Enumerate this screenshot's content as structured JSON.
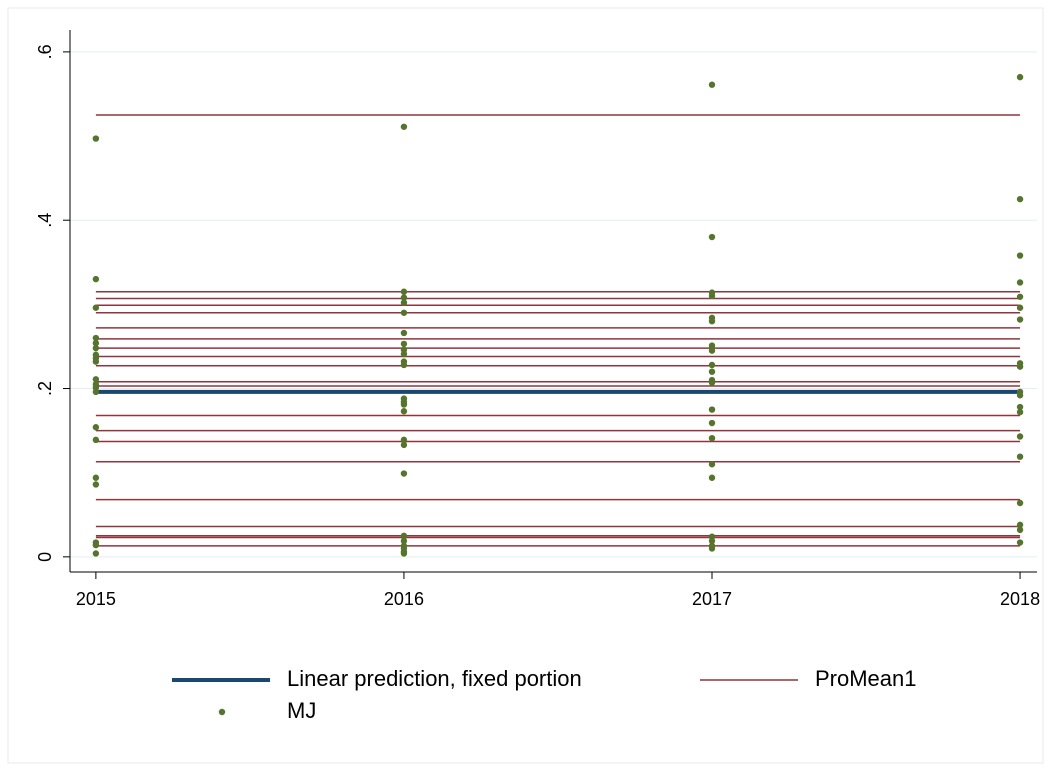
{
  "chart_data": {
    "type": "scatter",
    "xlim": [
      2014.916,
      2018.055
    ],
    "xticks": [
      2015,
      2016,
      2017,
      2018
    ],
    "ylim": [
      -0.018,
      0.626
    ],
    "yticks": [
      0,
      {
        "value": 0.2,
        "label": ".2"
      },
      {
        "value": 0.4,
        "label": ".4"
      },
      {
        "value": 0.6,
        "label": ".6"
      }
    ],
    "grid": true,
    "legend": "bottom",
    "series": [
      {
        "name": "Linear prediction, fixed portion",
        "type": "line",
        "color": "#1a476f",
        "x": [
          2015,
          2016,
          2017,
          2018
        ],
        "values": [
          0.196,
          0.196,
          0.196,
          0.196
        ]
      },
      {
        "name": "ProMean1",
        "type": "hlines",
        "color": "#90353b",
        "x": [
          2015,
          2018
        ],
        "levels": [
          0.525,
          0.315,
          0.307,
          0.299,
          0.29,
          0.272,
          0.259,
          0.248,
          0.238,
          0.227,
          0.208,
          0.203,
          0.168,
          0.15,
          0.137,
          0.113,
          0.068,
          0.036,
          0.025,
          0.023,
          0.013
        ]
      },
      {
        "name": "MJ",
        "type": "scatter",
        "color": "#55752f",
        "x": [
          2015,
          2015,
          2015,
          2015,
          2015,
          2015,
          2015,
          2015,
          2015,
          2015,
          2015,
          2015,
          2015,
          2015,
          2015,
          2015,
          2015,
          2015,
          2015,
          2015,
          2016,
          2016,
          2016,
          2016,
          2016,
          2016,
          2016,
          2016,
          2016,
          2016,
          2016,
          2016,
          2016,
          2016,
          2016,
          2016,
          2016,
          2016,
          2016,
          2016,
          2016,
          2016,
          2016,
          2016,
          2017,
          2017,
          2017,
          2017,
          2017,
          2017,
          2017,
          2017,
          2017,
          2017,
          2017,
          2017,
          2017,
          2017,
          2017,
          2017,
          2017,
          2017,
          2017,
          2017,
          2017,
          2018,
          2018,
          2018,
          2018,
          2018,
          2018,
          2018,
          2018,
          2018,
          2018,
          2018,
          2018,
          2018,
          2018,
          2018,
          2018,
          2018,
          2018,
          2018
        ],
        "values": [
          0.497,
          0.33,
          0.296,
          0.26,
          0.254,
          0.248,
          0.24,
          0.236,
          0.232,
          0.211,
          0.205,
          0.201,
          0.196,
          0.154,
          0.139,
          0.094,
          0.086,
          0.017,
          0.014,
          0.004,
          0.511,
          0.315,
          0.308,
          0.302,
          0.29,
          0.266,
          0.253,
          0.246,
          0.241,
          0.232,
          0.228,
          0.188,
          0.184,
          0.181,
          0.173,
          0.139,
          0.133,
          0.099,
          0.025,
          0.019,
          0.013,
          0.01,
          0.006,
          0.004,
          0.561,
          0.38,
          0.314,
          0.31,
          0.284,
          0.28,
          0.251,
          0.245,
          0.228,
          0.22,
          0.21,
          0.207,
          0.175,
          0.159,
          0.141,
          0.11,
          0.094,
          0.024,
          0.019,
          0.013,
          0.01,
          0.57,
          0.425,
          0.358,
          0.326,
          0.309,
          0.296,
          0.282,
          0.23,
          0.226,
          0.196,
          0.192,
          0.178,
          0.172,
          0.143,
          0.119,
          0.064,
          0.038,
          0.032,
          0.017
        ]
      }
    ]
  }
}
